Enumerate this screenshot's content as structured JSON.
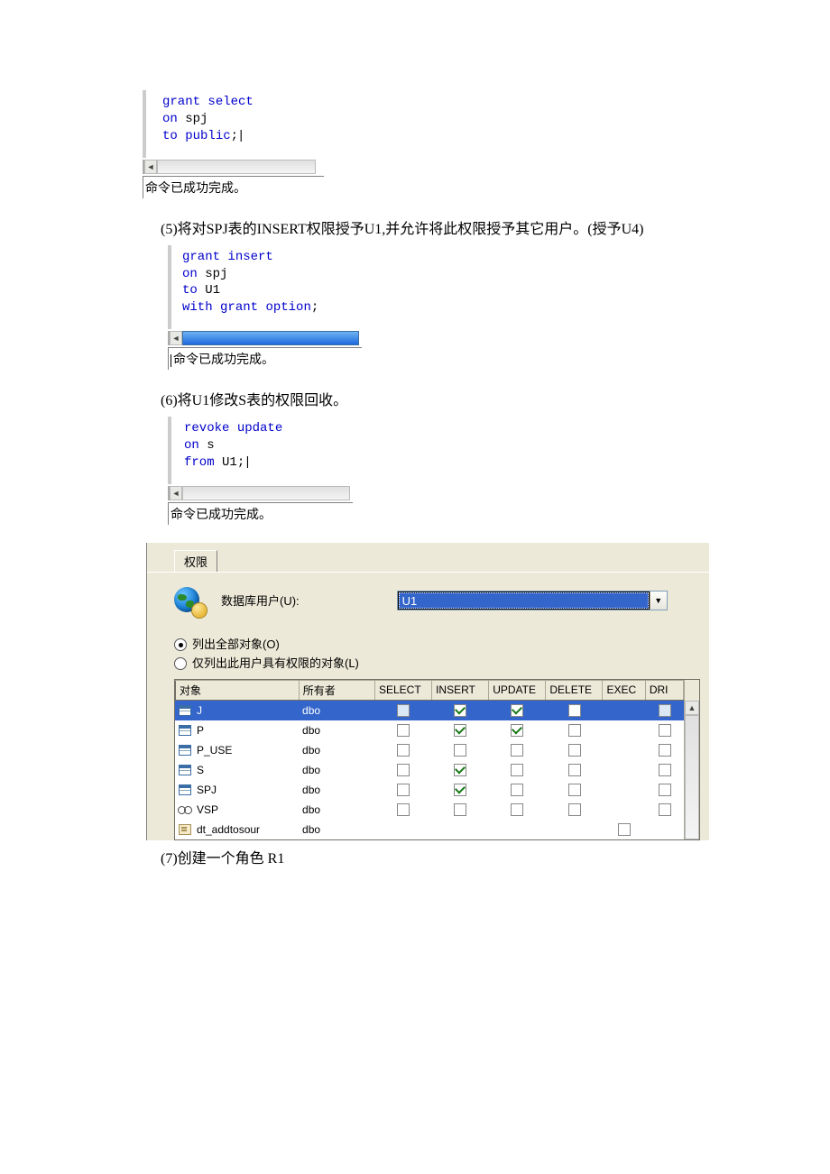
{
  "code1": {
    "l1a": "grant",
    "l1b": "select",
    "l2a": "on",
    "l2b": " spj",
    "l3a": "to",
    "l3b": "public",
    "l3c": ";"
  },
  "status1": "命令已成功完成。",
  "narr5": "(5)将对SPJ表的INSERT权限授予U1,并允许将此权限授予其它用户。(授予U4)",
  "code2": {
    "l1a": "grant",
    "l1b": "insert",
    "l2a": "on",
    "l2b": " spj",
    "l3a": "to",
    "l3b": " U1",
    "l4a": "with",
    "l4b": "grant",
    "l4c": "option",
    "l4d": ";"
  },
  "status2": "命令已成功完成。",
  "narr6": "(6)将U1修改S表的权限回收。",
  "code3": {
    "l1a": "revoke",
    "l1b": "update",
    "l2a": "on",
    "l2b": " s",
    "l3a": "from",
    "l3b": " U1;"
  },
  "status3": "命令已成功完成。",
  "dlg": {
    "tab": "权限",
    "user_label": "数据库用户(U):",
    "user_value": "U1",
    "radio_all": "列出全部对象(O)",
    "radio_limited": "仅列出此用户具有权限的对象(L)",
    "headers": {
      "obj": "对象",
      "owner": "所有者",
      "sel": "SELECT",
      "ins": "INSERT",
      "upd": "UPDATE",
      "del": "DELETE",
      "exec": "EXEC",
      "dri": "DRI"
    },
    "rows": [
      {
        "icon": "table",
        "name": "J",
        "owner": "dbo",
        "sel": "b",
        "ins": "c",
        "upd": "c",
        "del": "b",
        "exec": "",
        "dri": "b",
        "selected": true
      },
      {
        "icon": "table",
        "name": "P",
        "owner": "dbo",
        "sel": "b",
        "ins": "c",
        "upd": "c",
        "del": "b",
        "exec": "",
        "dri": "b"
      },
      {
        "icon": "table",
        "name": "P_USE",
        "owner": "dbo",
        "sel": "b",
        "ins": "b",
        "upd": "b",
        "del": "b",
        "exec": "",
        "dri": "b"
      },
      {
        "icon": "table",
        "name": "S",
        "owner": "dbo",
        "sel": "b",
        "ins": "c",
        "upd": "b",
        "del": "b",
        "exec": "",
        "dri": "b"
      },
      {
        "icon": "table",
        "name": "SPJ",
        "owner": "dbo",
        "sel": "b",
        "ins": "c",
        "upd": "b",
        "del": "b",
        "exec": "",
        "dri": "b"
      },
      {
        "icon": "view",
        "name": "VSP",
        "owner": "dbo",
        "sel": "b",
        "ins": "b",
        "upd": "b",
        "del": "b",
        "exec": "",
        "dri": "b"
      },
      {
        "icon": "proc",
        "name": "dt_addtosour",
        "owner": "dbo",
        "sel": "",
        "ins": "",
        "upd": "",
        "del": "",
        "exec": "b",
        "dri": ""
      }
    ]
  },
  "narr7": "(7)创建一个角色 R1"
}
